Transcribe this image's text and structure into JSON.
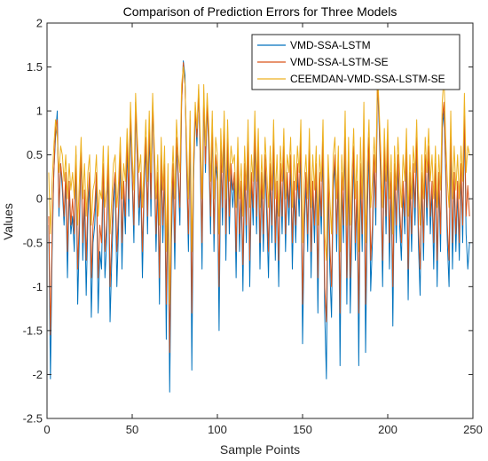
{
  "chart_data": {
    "type": "line",
    "title": "Comparison of Prediction Errors for Three Models",
    "xlabel": "Sample Points",
    "ylabel": "Values",
    "xlim": [
      0,
      250
    ],
    "ylim": [
      -2.5,
      2
    ],
    "xticks": [
      0,
      50,
      100,
      150,
      200,
      250
    ],
    "yticks": [
      -2.5,
      -2,
      -1.5,
      -1,
      -0.5,
      0,
      0.5,
      1,
      1.5,
      2
    ],
    "xtick_labels": [
      "0",
      "50",
      "100",
      "150",
      "200",
      "250"
    ],
    "ytick_labels": [
      "-2.5",
      "-2",
      "-1.5",
      "-1",
      "-0.5",
      "0",
      "0.5",
      "1",
      "1.5",
      "2"
    ],
    "grid": false,
    "legend_position": "top-right",
    "x_start": 1,
    "series": [
      {
        "name": "VMD-SSA-LSTM",
        "color": "#0072BD",
        "values": [
          -0.3,
          -2.05,
          -0.6,
          0.3,
          0.7,
          1.0,
          -0.2,
          0.4,
          0.1,
          -0.3,
          0.2,
          -0.9,
          0.1,
          -0.4,
          -0.2,
          -0.6,
          0.5,
          -1.2,
          -0.4,
          0.6,
          -0.7,
          0.0,
          -1.1,
          -0.2,
          0.2,
          -1.35,
          -0.5,
          -0.3,
          0.2,
          -1.3,
          -0.6,
          -0.8,
          0.3,
          -0.9,
          -0.5,
          0.4,
          -1.4,
          -0.7,
          -0.1,
          0.2,
          -1.0,
          -0.3,
          0.5,
          -0.8,
          0.1,
          -0.4,
          0.6,
          -0.2,
          0.9,
          0.2,
          -0.5,
          1.1,
          0.4,
          -0.3,
          0.2,
          -0.9,
          0.1,
          0.6,
          -0.4,
          0.8,
          -0.2,
          1.1,
          0.3,
          -0.6,
          0.2,
          -1.2,
          0.4,
          -0.5,
          0.3,
          -1.6,
          0.1,
          -2.2,
          -0.5,
          0.3,
          -0.8,
          0.6,
          0.2,
          -0.3,
          1.1,
          1.57,
          1.4,
          0.3,
          -0.6,
          0.8,
          -1.95,
          0.2,
          1.0,
          0.6,
          1.25,
          0.4,
          -0.8,
          1.2,
          0.3,
          1.1,
          0.5,
          -0.4,
          0.9,
          -0.6,
          0.4,
          0.2,
          -1.5,
          0.5,
          -0.3,
          0.8,
          -0.7,
          0.6,
          -0.4,
          0.3,
          -0.1,
          0.2,
          -0.9,
          0.4,
          -0.6,
          0.1,
          -1.05,
          0.3,
          -0.5,
          0.6,
          -1.0,
          0.2,
          -0.3,
          0.7,
          -0.4,
          0.5,
          -0.8,
          0.2,
          -0.6,
          0.4,
          -0.2,
          -0.9,
          0.3,
          -0.5,
          0.6,
          -0.7,
          0.1,
          -1.0,
          0.3,
          -0.4,
          0.5,
          -0.6,
          0.2,
          -0.3,
          0.4,
          -0.8,
          0.1,
          -0.5,
          0.3,
          -0.2,
          0.6,
          -1.65,
          -0.4,
          0.2,
          -0.6,
          0.5,
          -0.9,
          0.1,
          -0.5,
          0.3,
          -1.3,
          0.2,
          -0.4,
          0.6,
          -1.3,
          -2.05,
          0.2,
          -0.8,
          -1.35,
          0.1,
          0.4,
          -0.6,
          0.3,
          -1.9,
          0.2,
          -0.5,
          0.7,
          -1.2,
          0.4,
          -1.3,
          -0.3,
          0.5,
          -0.7,
          0.1,
          -1.9,
          0.3,
          -0.6,
          0.8,
          -1.75,
          -0.2,
          0.6,
          -1.05,
          -0.5,
          0.4,
          -0.3,
          1.35,
          0.8,
          0.1,
          -1.0,
          0.5,
          -0.4,
          0.6,
          -0.8,
          0.2,
          -1.45,
          0.3,
          -0.5,
          0.4,
          -0.3,
          -0.7,
          0.1,
          -0.4,
          0.5,
          -1.15,
          0.2,
          -0.6,
          0.3,
          -0.3,
          0.6,
          -0.5,
          -1.1,
          0.2,
          -0.7,
          0.4,
          -0.3,
          0.5,
          -0.4,
          0.1,
          -0.8,
          0.3,
          -1.0,
          0.2,
          -0.6,
          0.8,
          1.0,
          0.3,
          -0.5,
          -1.0,
          0.7,
          -0.8,
          0.2,
          -0.6,
          0.1,
          -0.7,
          0.3,
          -0.5,
          0.9,
          -0.4,
          -0.8,
          -0.5
        ]
      },
      {
        "name": "VMD-SSA-LSTM-SE",
        "color": "#D95319",
        "values": [
          -0.2,
          -1.55,
          -0.4,
          0.3,
          0.8,
          0.9,
          -0.1,
          0.4,
          0.2,
          -0.2,
          0.3,
          -0.6,
          0.2,
          -0.3,
          0.0,
          -0.4,
          0.5,
          -0.8,
          -0.2,
          0.6,
          -0.5,
          0.1,
          -0.7,
          0.0,
          0.3,
          -0.9,
          -0.3,
          -0.1,
          0.3,
          -0.9,
          -0.3,
          -0.5,
          0.4,
          -0.6,
          -0.3,
          0.5,
          -1.0,
          -0.4,
          0.1,
          0.3,
          -0.6,
          -0.1,
          0.6,
          -0.5,
          0.2,
          -0.2,
          0.7,
          0.0,
          1.0,
          0.3,
          -0.3,
          1.1,
          0.5,
          -0.1,
          0.3,
          -0.6,
          0.2,
          0.7,
          -0.2,
          0.9,
          0.0,
          1.1,
          0.4,
          -0.4,
          0.3,
          -0.9,
          0.5,
          -0.3,
          0.4,
          -1.2,
          0.2,
          -1.75,
          -0.3,
          0.4,
          -0.5,
          0.7,
          0.3,
          -0.1,
          1.1,
          1.55,
          1.3,
          0.4,
          -0.4,
          0.9,
          -1.3,
          0.3,
          1.0,
          0.7,
          1.2,
          0.5,
          -0.5,
          1.2,
          0.4,
          1.1,
          0.6,
          -0.2,
          0.9,
          -0.4,
          0.5,
          0.3,
          -1.0,
          0.6,
          -0.1,
          0.9,
          -0.4,
          0.7,
          -0.2,
          0.4,
          0.1,
          0.3,
          -0.6,
          0.5,
          -0.4,
          0.2,
          -0.75,
          0.4,
          -0.3,
          0.7,
          -0.7,
          0.3,
          -0.1,
          0.8,
          -0.2,
          0.6,
          -0.5,
          0.3,
          -0.4,
          0.5,
          0.0,
          -0.6,
          0.4,
          -0.3,
          0.7,
          -0.5,
          0.2,
          -0.7,
          0.4,
          -0.2,
          0.6,
          -0.4,
          0.3,
          -0.1,
          0.5,
          -0.5,
          0.2,
          -0.3,
          0.4,
          0.0,
          0.7,
          -1.2,
          -0.2,
          0.3,
          -0.4,
          0.6,
          -0.6,
          0.2,
          -0.3,
          0.4,
          -0.9,
          0.3,
          -0.2,
          0.7,
          -1.0,
          -1.4,
          0.3,
          -0.5,
          -1.0,
          0.2,
          0.5,
          -0.4,
          0.4,
          -1.3,
          0.3,
          -0.3,
          0.8,
          -0.9,
          0.5,
          -0.9,
          -0.1,
          0.6,
          -0.5,
          0.2,
          -1.3,
          0.4,
          -0.4,
          0.9,
          -1.2,
          0.0,
          0.7,
          -0.7,
          -0.3,
          0.5,
          -0.1,
          1.35,
          0.9,
          0.2,
          -0.7,
          0.6,
          -0.2,
          0.7,
          -0.5,
          0.3,
          -1.0,
          0.4,
          -0.3,
          0.5,
          -0.1,
          -0.5,
          0.2,
          -0.2,
          0.6,
          -0.8,
          0.3,
          -0.4,
          0.4,
          -0.1,
          0.7,
          -0.3,
          -0.8,
          0.3,
          -0.5,
          0.5,
          -0.1,
          0.6,
          -0.2,
          0.2,
          -0.5,
          0.4,
          -0.7,
          0.3,
          -0.4,
          0.9,
          1.1,
          0.4,
          -0.3,
          -0.7,
          0.8,
          -0.5,
          0.3,
          -0.4,
          0.2,
          -0.5,
          0.4,
          -0.3,
          1.0,
          -0.2,
          0.15,
          -0.2
        ]
      },
      {
        "name": "CEEMDAN-VMD-SSA-LSTM-SE",
        "color": "#EDB120",
        "values": [
          0.3,
          -0.4,
          0.2,
          0.6,
          0.9,
          0.7,
          0.3,
          0.6,
          0.5,
          0.2,
          0.5,
          0.0,
          0.4,
          0.1,
          0.3,
          0.0,
          0.6,
          -0.3,
          0.2,
          0.7,
          0.0,
          0.4,
          -0.2,
          0.3,
          0.5,
          -0.3,
          0.1,
          0.2,
          0.5,
          -0.2,
          0.1,
          0.0,
          0.6,
          -0.1,
          0.1,
          0.6,
          -0.4,
          0.0,
          0.4,
          0.5,
          -0.1,
          0.2,
          0.7,
          0.0,
          0.4,
          0.2,
          0.8,
          0.3,
          1.1,
          0.5,
          0.1,
          1.2,
          0.7,
          0.3,
          0.5,
          -0.1,
          0.4,
          0.9,
          0.2,
          1.0,
          0.3,
          1.2,
          0.6,
          0.0,
          0.5,
          -0.3,
          0.7,
          0.1,
          0.6,
          -0.6,
          0.4,
          -1.2,
          0.1,
          0.6,
          0.0,
          0.9,
          0.5,
          0.3,
          1.3,
          1.5,
          1.3,
          0.6,
          0.0,
          1.0,
          -0.6,
          0.5,
          1.1,
          0.8,
          1.3,
          0.7,
          0.0,
          1.3,
          0.6,
          1.2,
          0.8,
          0.2,
          1.0,
          0.0,
          0.7,
          0.5,
          -0.4,
          0.8,
          0.3,
          1.0,
          0.0,
          0.9,
          0.2,
          0.6,
          0.4,
          0.5,
          -0.1,
          0.7,
          0.0,
          0.4,
          -0.2,
          0.6,
          0.1,
          0.9,
          -0.1,
          0.5,
          0.2,
          1.0,
          0.2,
          0.8,
          -0.1,
          0.5,
          0.0,
          0.7,
          0.3,
          -0.1,
          0.6,
          0.1,
          0.9,
          0.0,
          0.5,
          -0.2,
          0.6,
          0.2,
          0.8,
          0.0,
          0.5,
          0.3,
          0.7,
          -0.1,
          0.5,
          0.1,
          0.6,
          0.3,
          0.9,
          -0.5,
          0.2,
          0.5,
          0.0,
          0.8,
          -0.1,
          0.5,
          0.1,
          0.6,
          -0.3,
          0.5,
          0.2,
          0.9,
          -0.4,
          -0.7,
          0.5,
          0.0,
          -0.4,
          0.5,
          0.7,
          0.0,
          0.6,
          -0.6,
          0.5,
          0.1,
          1.0,
          -0.3,
          0.7,
          -0.3,
          0.3,
          0.8,
          0.0,
          0.5,
          -0.6,
          0.7,
          0.0,
          1.1,
          -0.5,
          0.4,
          0.9,
          -0.1,
          0.2,
          0.7,
          0.3,
          1.45,
          1.0,
          0.5,
          -0.1,
          0.8,
          0.2,
          0.9,
          0.0,
          0.5,
          -0.4,
          0.6,
          0.1,
          0.7,
          0.3,
          -0.1,
          0.5,
          0.2,
          0.8,
          -0.2,
          0.5,
          0.0,
          0.6,
          0.3,
          0.9,
          0.1,
          -0.3,
          0.5,
          0.0,
          0.7,
          0.3,
          0.8,
          0.2,
          0.5,
          0.0,
          0.6,
          -0.1,
          0.5,
          0.1,
          1.1,
          1.4,
          0.7,
          0.2,
          -0.1,
          1.0,
          0.0,
          0.6,
          0.1,
          0.5,
          0.0,
          0.6,
          0.2,
          1.2,
          0.3,
          0.6,
          0.5
        ]
      }
    ]
  }
}
